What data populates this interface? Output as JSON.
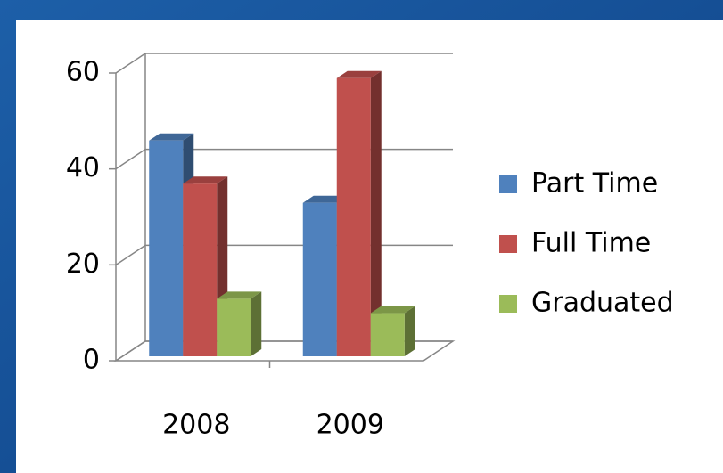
{
  "chart_data": {
    "type": "bar3d",
    "categories": [
      "2008",
      "2009"
    ],
    "series": [
      {
        "name": "Part Time",
        "color": "#4f81bd",
        "values": [
          45,
          32
        ]
      },
      {
        "name": "Full Time",
        "color": "#c0504d",
        "values": [
          36,
          58
        ]
      },
      {
        "name": "Graduated",
        "color": "#9bbb59",
        "values": [
          12,
          9
        ]
      }
    ],
    "ylim": [
      0,
      60
    ],
    "yticks": [
      0,
      20,
      40,
      60
    ],
    "grid": true,
    "legend": "right"
  }
}
